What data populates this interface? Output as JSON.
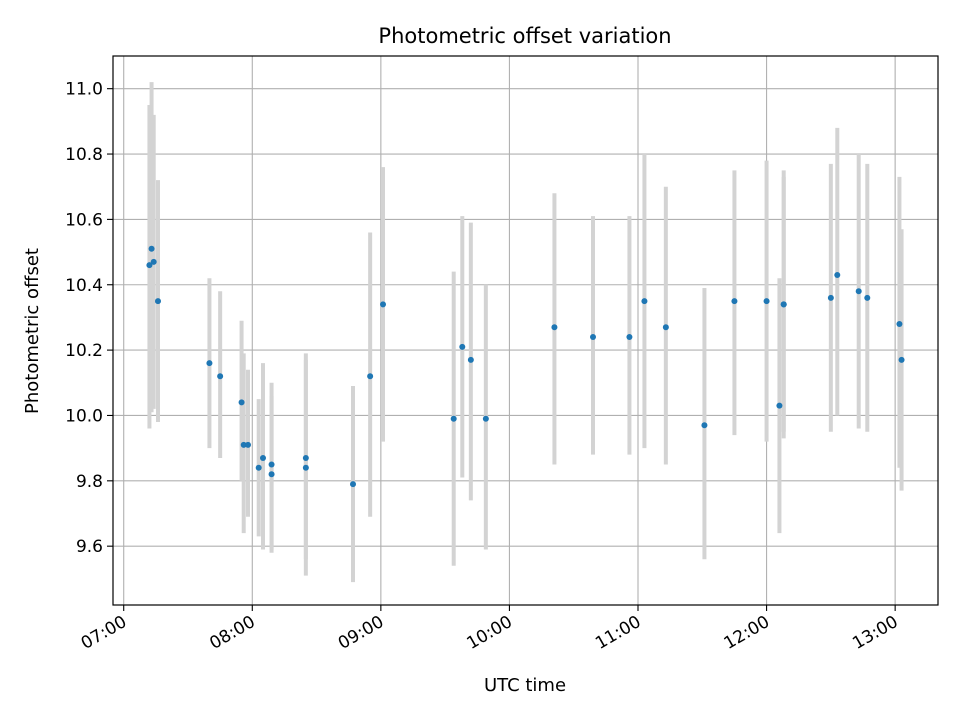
{
  "chart_data": {
    "type": "scatter",
    "title": "Photometric offset variation",
    "xlabel": "UTC time",
    "ylabel": "Photometric offset",
    "x_ticks": [
      "07:00",
      "08:00",
      "09:00",
      "10:00",
      "11:00",
      "12:00",
      "13:00"
    ],
    "y_ticks": [
      "9.6",
      "9.8",
      "10.0",
      "10.2",
      "10.4",
      "10.6",
      "10.8",
      "11.0"
    ],
    "xlim": [
      "06:55",
      "13:20"
    ],
    "ylim": [
      9.42,
      11.1
    ],
    "grid": true,
    "colors": {
      "point": "#1f77b4",
      "errorbar": "#d3d3d3",
      "grid": "#b0b0b0"
    },
    "points": [
      {
        "x": "07:12",
        "y": 10.46,
        "ylo": 9.96,
        "yhi": 10.95
      },
      {
        "x": "07:13",
        "y": 10.51,
        "ylo": 10.01,
        "yhi": 11.02
      },
      {
        "x": "07:14",
        "y": 10.47,
        "ylo": 10.02,
        "yhi": 10.92
      },
      {
        "x": "07:16",
        "y": 10.35,
        "ylo": 9.98,
        "yhi": 10.72
      },
      {
        "x": "07:40",
        "y": 10.16,
        "ylo": 9.9,
        "yhi": 10.42
      },
      {
        "x": "07:45",
        "y": 10.12,
        "ylo": 9.87,
        "yhi": 10.38
      },
      {
        "x": "07:55",
        "y": 10.04,
        "ylo": 9.8,
        "yhi": 10.29
      },
      {
        "x": "07:56",
        "y": 9.91,
        "ylo": 9.64,
        "yhi": 10.19
      },
      {
        "x": "07:58",
        "y": 9.91,
        "ylo": 9.69,
        "yhi": 10.14
      },
      {
        "x": "08:03",
        "y": 9.84,
        "ylo": 9.63,
        "yhi": 10.05
      },
      {
        "x": "08:05",
        "y": 9.87,
        "ylo": 9.59,
        "yhi": 10.16
      },
      {
        "x": "08:09",
        "y": 9.85,
        "ylo": 9.59,
        "yhi": 10.1
      },
      {
        "x": "08:09",
        "y": 9.82,
        "ylo": 9.58,
        "yhi": 10.06
      },
      {
        "x": "08:25",
        "y": 9.87,
        "ylo": 9.56,
        "yhi": 10.19
      },
      {
        "x": "08:25",
        "y": 9.84,
        "ylo": 9.51,
        "yhi": 10.17
      },
      {
        "x": "08:47",
        "y": 9.79,
        "ylo": 9.49,
        "yhi": 10.09
      },
      {
        "x": "08:55",
        "y": 10.12,
        "ylo": 9.69,
        "yhi": 10.56
      },
      {
        "x": "09:01",
        "y": 10.34,
        "ylo": 9.92,
        "yhi": 10.76
      },
      {
        "x": "09:34",
        "y": 9.99,
        "ylo": 9.54,
        "yhi": 10.44
      },
      {
        "x": "09:38",
        "y": 10.21,
        "ylo": 9.81,
        "yhi": 10.61
      },
      {
        "x": "09:42",
        "y": 10.17,
        "ylo": 9.74,
        "yhi": 10.59
      },
      {
        "x": "09:49",
        "y": 9.99,
        "ylo": 9.59,
        "yhi": 10.4
      },
      {
        "x": "10:21",
        "y": 10.27,
        "ylo": 9.85,
        "yhi": 10.68
      },
      {
        "x": "10:39",
        "y": 10.24,
        "ylo": 9.88,
        "yhi": 10.61
      },
      {
        "x": "10:56",
        "y": 10.24,
        "ylo": 9.88,
        "yhi": 10.61
      },
      {
        "x": "11:03",
        "y": 10.35,
        "ylo": 9.9,
        "yhi": 10.8
      },
      {
        "x": "11:13",
        "y": 10.27,
        "ylo": 9.85,
        "yhi": 10.7
      },
      {
        "x": "11:31",
        "y": 9.97,
        "ylo": 9.56,
        "yhi": 10.39
      },
      {
        "x": "11:45",
        "y": 10.35,
        "ylo": 9.94,
        "yhi": 10.75
      },
      {
        "x": "12:00",
        "y": 10.35,
        "ylo": 9.92,
        "yhi": 10.78
      },
      {
        "x": "12:06",
        "y": 10.03,
        "ylo": 9.64,
        "yhi": 10.42
      },
      {
        "x": "12:08",
        "y": 10.34,
        "ylo": 9.93,
        "yhi": 10.75
      },
      {
        "x": "12:08",
        "y": 10.34,
        "ylo": 9.95,
        "yhi": 10.73
      },
      {
        "x": "12:30",
        "y": 10.36,
        "ylo": 9.95,
        "yhi": 10.77
      },
      {
        "x": "12:33",
        "y": 10.43,
        "ylo": 10.0,
        "yhi": 10.88
      },
      {
        "x": "12:43",
        "y": 10.38,
        "ylo": 9.96,
        "yhi": 10.8
      },
      {
        "x": "12:47",
        "y": 10.36,
        "ylo": 9.95,
        "yhi": 10.77
      },
      {
        "x": "13:02",
        "y": 10.28,
        "ylo": 9.84,
        "yhi": 10.73
      },
      {
        "x": "13:03",
        "y": 10.17,
        "ylo": 9.77,
        "yhi": 10.57
      }
    ]
  }
}
